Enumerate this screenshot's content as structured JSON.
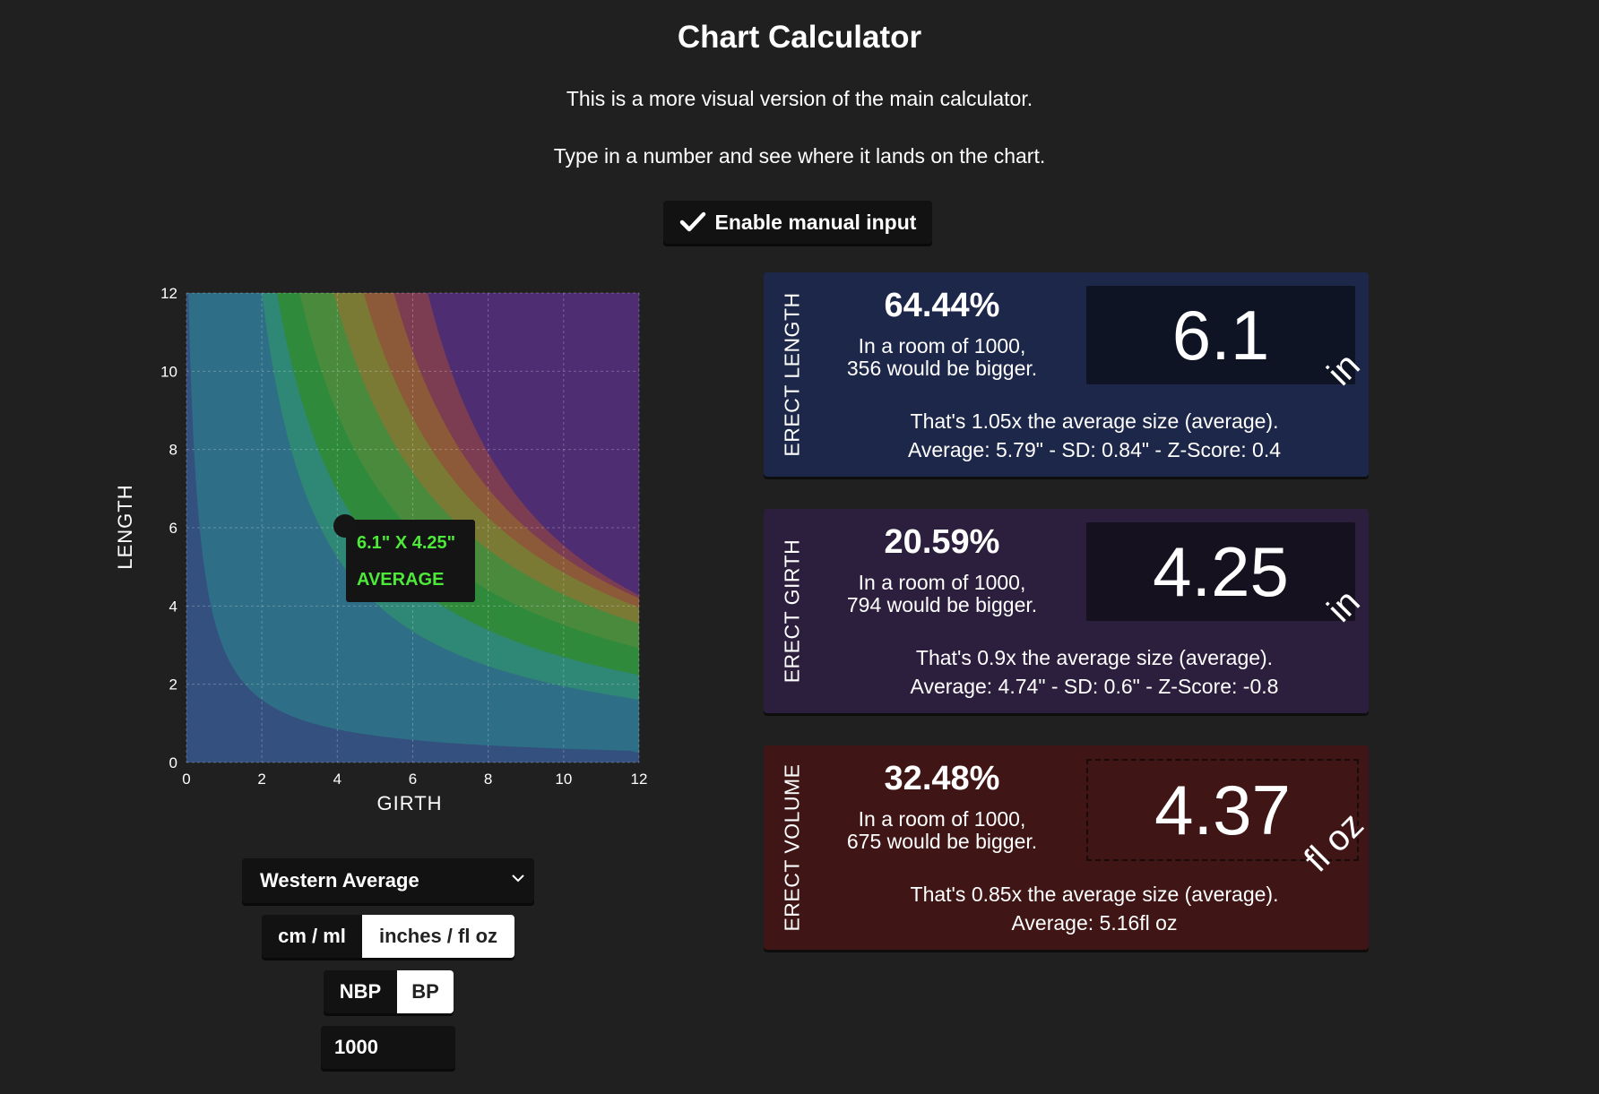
{
  "header": {
    "title": "Chart Calculator",
    "line1": "This is a more visual version of the main calculator.",
    "line2": "Type in a number and see where it lands on the chart.",
    "manual_input_label": "Enable manual input"
  },
  "chart_data": {
    "type": "area",
    "xlabel": "GIRTH",
    "ylabel": "LENGTH",
    "xlim": [
      0,
      12
    ],
    "ylim": [
      0,
      12
    ],
    "xticks": [
      "0",
      "2",
      "4",
      "6",
      "8",
      "10",
      "12"
    ],
    "yticks": [
      "0",
      "2",
      "4",
      "6",
      "8",
      "10",
      "12"
    ],
    "grid": true,
    "point": {
      "x": 4.25,
      "y": 6.1,
      "label": "6.1\" X 4.25\"",
      "category": "AVERAGE"
    },
    "bands": [
      {
        "x_at_top": 0.05,
        "x_at_mid": 0.35,
        "color": "#33507e"
      },
      {
        "x_at_top": 2.0,
        "x_at_mid": 3.55,
        "color": "#2e6e86"
      },
      {
        "x_at_top": 2.4,
        "x_at_mid": 4.6,
        "color": "#2f8775"
      },
      {
        "x_at_top": 3.0,
        "x_at_mid": 5.9,
        "color": "#2f8a3c"
      },
      {
        "x_at_top": 3.9,
        "x_at_mid": 7.3,
        "color": "#4a8a3d"
      },
      {
        "x_at_top": 4.7,
        "x_at_mid": 8.3,
        "color": "#7a7a35"
      },
      {
        "x_at_top": 5.5,
        "x_at_mid": 9.0,
        "color": "#8c5a38"
      },
      {
        "x_at_top": 6.4,
        "x_at_mid": 9.5,
        "color": "#7c3c52"
      }
    ],
    "background_color": "#4e2d73"
  },
  "controls": {
    "region_select": "Western Average",
    "unit_options": [
      "cm / ml",
      "inches / fl oz"
    ],
    "unit_selected": "inches / fl oz",
    "measure_options": [
      "NBP",
      "BP"
    ],
    "measure_selected": "BP",
    "room_size_value": "1000"
  },
  "cards": {
    "length": {
      "label": "ERECT LENGTH",
      "percent": "64.44%",
      "room_line1": "In a room of 1000,",
      "room_line2": "356 would be bigger.",
      "value": "6.1",
      "unit": "in",
      "ratio_line": "That's 1.05x the average size (average).",
      "stats_line": "Average: 5.79\" - SD: 0.84\" - Z-Score: 0.4",
      "bg_color": "#1d2749",
      "box_color": "#0e1424"
    },
    "girth": {
      "label": "ERECT GIRTH",
      "percent": "20.59%",
      "room_line1": "In a room of 1000,",
      "room_line2": "794 would be bigger.",
      "value": "4.25",
      "unit": "in",
      "ratio_line": "That's 0.9x the average size (average).",
      "stats_line": "Average: 4.74\" - SD: 0.6\" - Z-Score: -0.8",
      "bg_color": "#2c1f3d",
      "box_color": "#16111f"
    },
    "volume": {
      "label": "ERECT VOLUME",
      "percent": "32.48%",
      "room_line1": "In a room of 1000,",
      "room_line2": "675 would be bigger.",
      "value": "4.37",
      "unit": "fl oz",
      "ratio_line": "That's 0.85x the average size (average).",
      "stats_line": "Average: 5.16fl oz",
      "bg_color": "#3f1515",
      "box_color": "#3f1515"
    }
  }
}
